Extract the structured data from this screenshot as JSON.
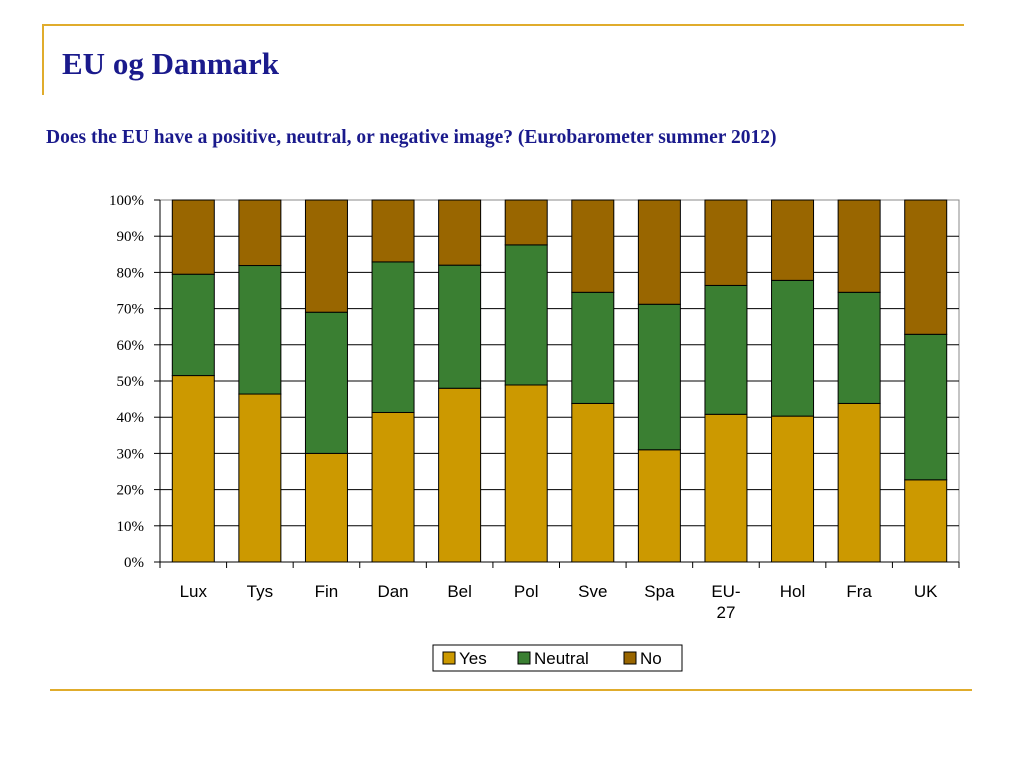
{
  "page": {
    "title": "EU og Danmark",
    "subtitle": "Does the EU have a positive, neutral, or negative image? (Eurobarometer summer 2012)",
    "accent_color": "#e0ac2c",
    "title_color": "#1a1a8c"
  },
  "chart_data": {
    "type": "bar",
    "stacked": true,
    "percent_stacked": true,
    "title": "",
    "xlabel": "",
    "ylabel": "",
    "ylim": [
      0,
      100
    ],
    "yticks": [
      "0%",
      "10%",
      "20%",
      "30%",
      "40%",
      "50%",
      "60%",
      "70%",
      "80%",
      "90%",
      "100%"
    ],
    "grid": true,
    "legend_position": "bottom",
    "categories": [
      "Lux",
      "Tys",
      "Fin",
      "Dan",
      "Bel",
      "Pol",
      "Sve",
      "Spa",
      "EU-27",
      "Hol",
      "Fra",
      "UK"
    ],
    "category_labels": [
      [
        "Lux"
      ],
      [
        "Tys"
      ],
      [
        "Fin"
      ],
      [
        "Dan"
      ],
      [
        "Bel"
      ],
      [
        "Pol"
      ],
      [
        "Sve"
      ],
      [
        "Spa"
      ],
      [
        "EU-",
        "27"
      ],
      [
        "Hol"
      ],
      [
        "Fra"
      ],
      [
        "UK"
      ]
    ],
    "series": [
      {
        "name": "Yes",
        "color": "#cc9900",
        "values": [
          51.5,
          46.4,
          30.0,
          41.3,
          48.0,
          48.9,
          43.8,
          31.0,
          40.8,
          40.3,
          43.8,
          22.7
        ]
      },
      {
        "name": "Neutral",
        "color": "#3a7f32",
        "values": [
          28.0,
          35.5,
          39.0,
          41.6,
          34.0,
          38.7,
          30.7,
          40.2,
          35.6,
          37.5,
          30.7,
          40.2
        ]
      },
      {
        "name": "No",
        "color": "#996600",
        "values": [
          20.5,
          18.1,
          31.0,
          17.1,
          18.0,
          12.4,
          25.5,
          28.8,
          23.6,
          22.2,
          25.5,
          37.1
        ]
      }
    ]
  }
}
